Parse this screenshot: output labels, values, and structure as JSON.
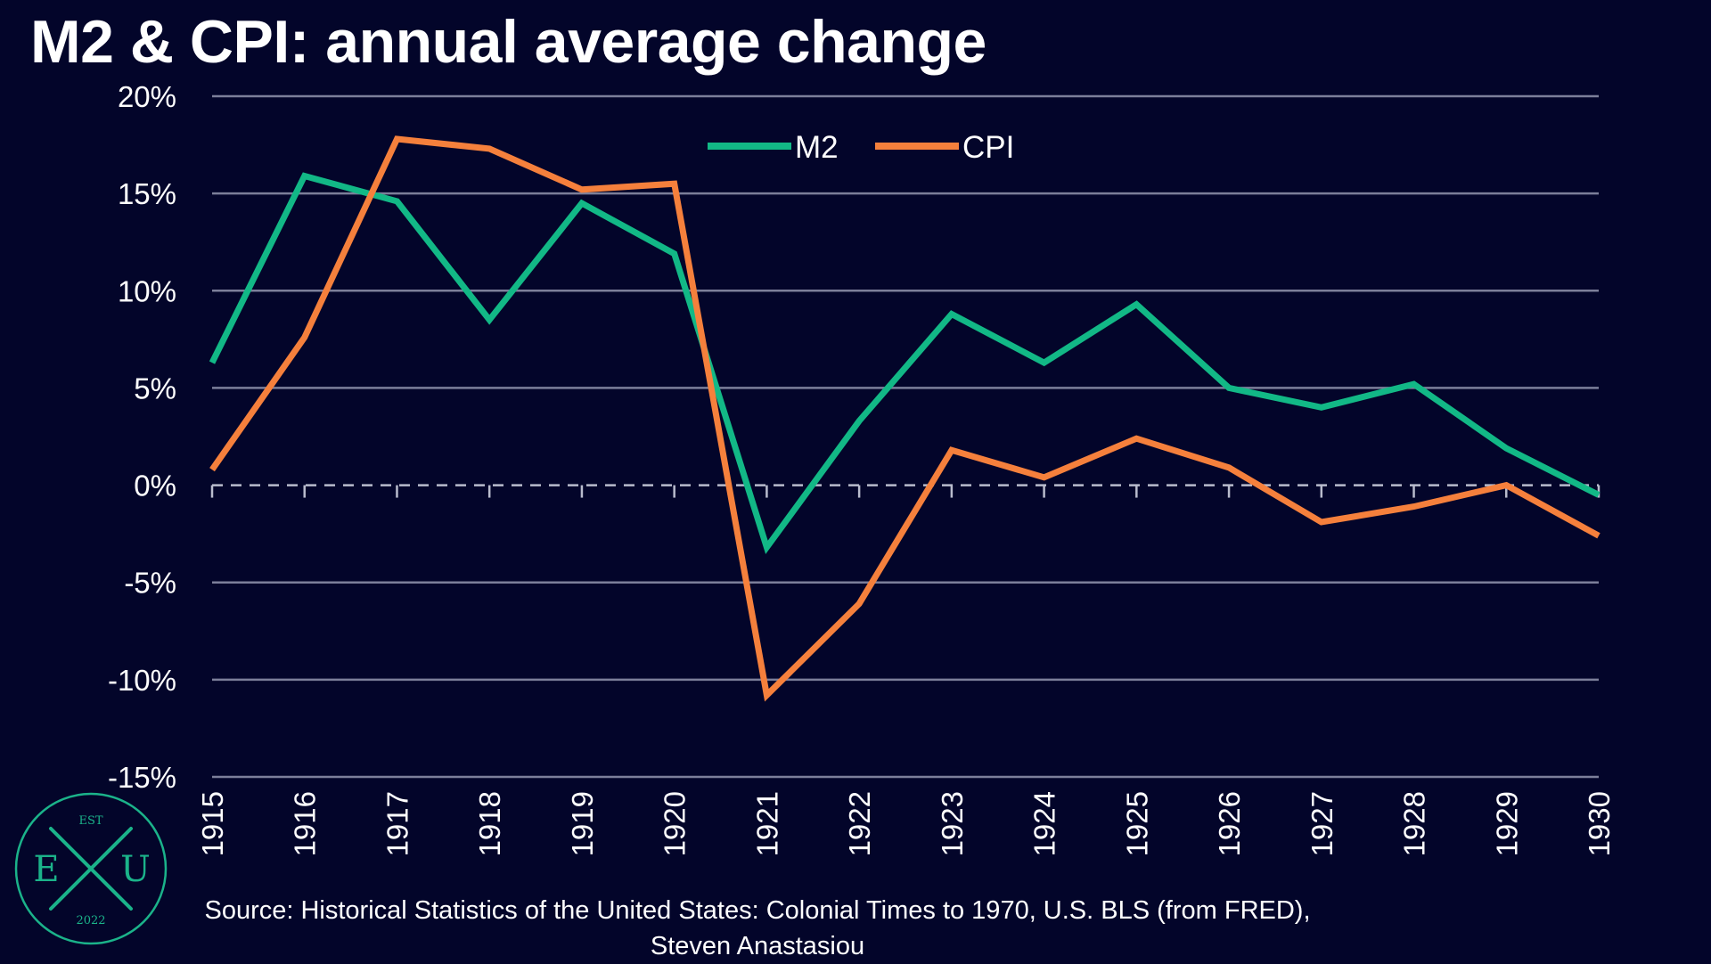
{
  "title": "M2 & CPI: annual average change",
  "source_line1": "Source: Historical Statistics of the United States: Colonial Times to 1970, U.S. BLS (from FRED),",
  "source_line2": "Steven Anastasiou",
  "logo": {
    "top": "EST",
    "left": "E",
    "right": "U",
    "bottom": "2022"
  },
  "colors": {
    "background": "#03052a",
    "m2": "#12b886",
    "cpi": "#f5803c",
    "grid": "#7c7f9a",
    "logo": "#1bb38a"
  },
  "chart_data": {
    "type": "line",
    "title": "M2 & CPI: annual average change",
    "x": [
      "1915",
      "1916",
      "1917",
      "1918",
      "1919",
      "1920",
      "1921",
      "1922",
      "1923",
      "1924",
      "1925",
      "1926",
      "1927",
      "1928",
      "1929",
      "1930"
    ],
    "ylim": [
      -15,
      20
    ],
    "yticks": [
      20,
      15,
      10,
      5,
      0,
      -5,
      -10,
      -15
    ],
    "ytick_labels": [
      "20%",
      "15%",
      "10%",
      "5%",
      "0%",
      "-5%",
      "-10%",
      "-15%"
    ],
    "grid": true,
    "zero_line": "dashed",
    "legend_position": "top-center",
    "series": [
      {
        "name": "M2",
        "color": "#12b886",
        "values": [
          6.3,
          15.9,
          14.6,
          8.5,
          14.5,
          11.9,
          -3.2,
          3.3,
          8.8,
          6.3,
          9.3,
          5.0,
          4.0,
          5.2,
          1.9,
          -0.5
        ]
      },
      {
        "name": "CPI",
        "color": "#f5803c",
        "values": [
          0.8,
          7.6,
          17.8,
          17.3,
          15.2,
          15.5,
          -10.8,
          -6.1,
          1.8,
          0.4,
          2.4,
          0.9,
          -1.9,
          -1.1,
          0.0,
          -2.6
        ]
      }
    ]
  }
}
